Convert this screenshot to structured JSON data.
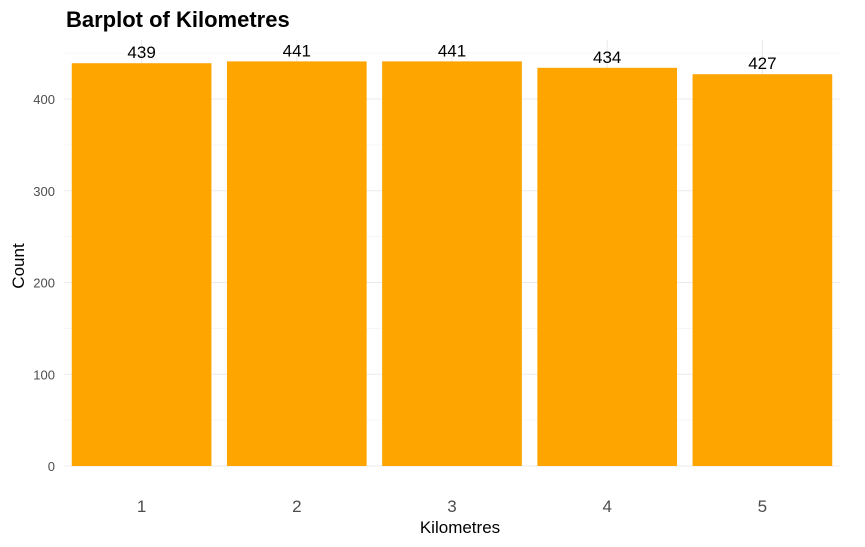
{
  "chart_data": {
    "type": "bar",
    "title": "Barplot of Kilometres",
    "xlabel": "Kilometres",
    "ylabel": "Count",
    "categories": [
      "1",
      "2",
      "3",
      "4",
      "5"
    ],
    "values": [
      439,
      441,
      441,
      434,
      427
    ],
    "data_labels": [
      "439",
      "441",
      "441",
      "434",
      "427"
    ],
    "yticks": [
      0,
      100,
      200,
      300,
      400
    ],
    "ylim": [
      0,
      463
    ],
    "grid": true,
    "legend": "none",
    "bar_color": "#FFA500",
    "background": "#FFFFFF"
  }
}
